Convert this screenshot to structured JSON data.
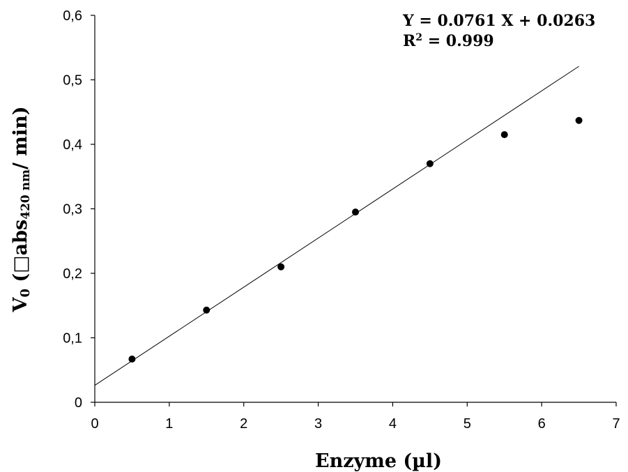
{
  "chart_data": {
    "type": "scatter",
    "xlabel": "Enzyme (µl)",
    "ylabel": "V",
    "ylabel_sub": "0",
    "ylabel_rest": " (□abs",
    "ylabel_sub2": "420 nm",
    "ylabel_end": "/ min)",
    "xlim": [
      0,
      7
    ],
    "ylim": [
      0,
      0.6
    ],
    "x_ticks": [
      "0",
      "1",
      "2",
      "3",
      "4",
      "5",
      "6",
      "7"
    ],
    "y_ticks": [
      "0",
      "0,1",
      "0,2",
      "0,3",
      "0,4",
      "0,5",
      "0,6"
    ],
    "points": [
      {
        "x": 0.5,
        "y": 0.067
      },
      {
        "x": 1.5,
        "y": 0.143
      },
      {
        "x": 2.5,
        "y": 0.21
      },
      {
        "x": 3.5,
        "y": 0.295
      },
      {
        "x": 4.5,
        "y": 0.37
      },
      {
        "x": 5.5,
        "y": 0.415
      },
      {
        "x": 6.5,
        "y": 0.437
      }
    ],
    "trendline": {
      "slope": 0.0761,
      "intercept": 0.0263,
      "x_range": [
        0,
        6.5
      ]
    },
    "equation": "Y = 0.0761 X + 0.0263",
    "r2_label": "R",
    "r2_sup": "2",
    "r2_value": " = 0.999",
    "grid": false
  }
}
